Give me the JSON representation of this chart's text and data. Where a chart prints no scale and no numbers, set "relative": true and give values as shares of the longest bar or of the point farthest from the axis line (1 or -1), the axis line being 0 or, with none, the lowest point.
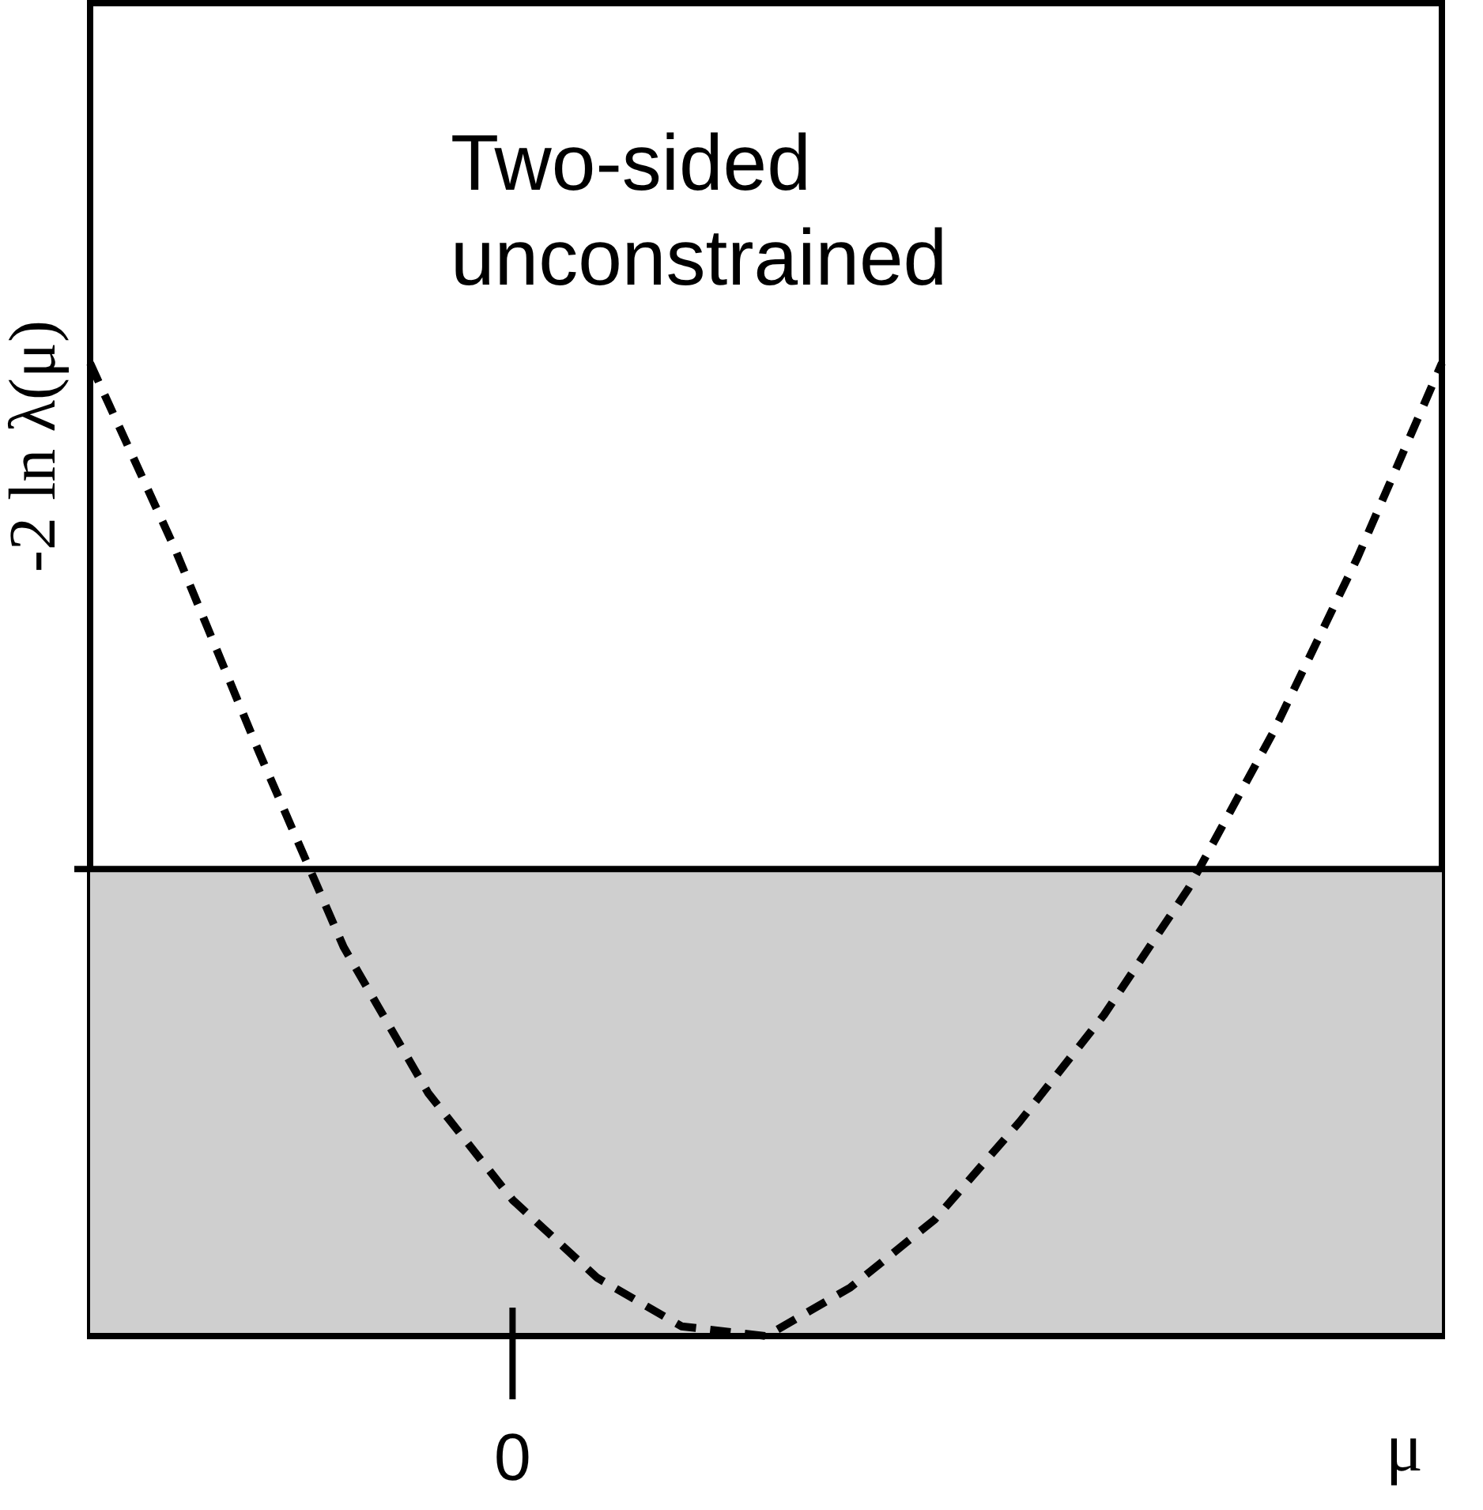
{
  "chart_data": {
    "type": "line",
    "relative": true,
    "xlabel": "μ",
    "ylabel": "-2 ln λ(μ)",
    "line_style": "dashed",
    "marker": "none",
    "grid": false,
    "categories": [
      null,
      null,
      null,
      null,
      null,
      null,
      null,
      null,
      null,
      null,
      null,
      null,
      null,
      null,
      null,
      null,
      null
    ],
    "series": [
      {
        "color": "#000000",
        "values": [
          1,
          0.81,
          0.6,
          0.4,
          0.25,
          0.14,
          0.06,
          0.01,
          0,
          0.05,
          0.12,
          0.22,
          0.33,
          0.46,
          0.62,
          0.8,
          1
        ]
      }
    ],
    "bands": [
      {
        "axis": "y",
        "from": 0,
        "to": 0.48,
        "color": "#cfcfcf"
      }
    ],
    "ref_lines": [
      {
        "axis": "y",
        "value": 0.48,
        "color": "#000000"
      }
    ],
    "annotations": [
      "Two-sided\nunconstrained",
      "0"
    ]
  }
}
